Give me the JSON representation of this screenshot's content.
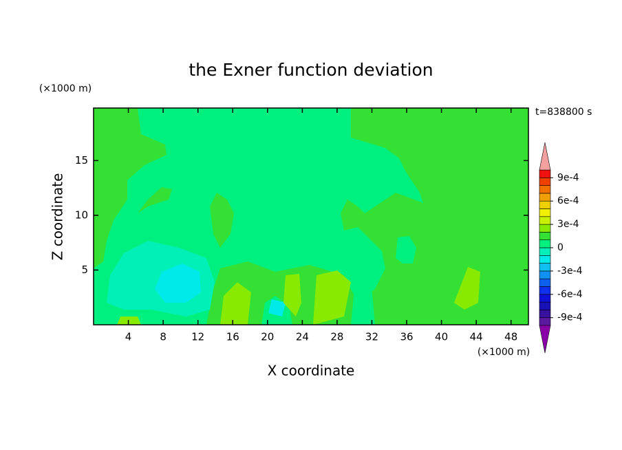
{
  "chart_data": {
    "type": "contour",
    "title": "the Exner function deviation",
    "xlabel": "X coordinate",
    "ylabel": "Z coordinate",
    "x_unit": "(×1000 m)",
    "y_unit": "(×1000 m)",
    "time_label": "t=838800 s",
    "xlim": [
      0,
      50
    ],
    "ylim": [
      0,
      19.8
    ],
    "xticks": [
      4,
      8,
      12,
      16,
      20,
      24,
      28,
      32,
      36,
      40,
      44,
      48
    ],
    "yticks": [
      5,
      10,
      15
    ],
    "colorbar": {
      "levels": [
        -0.001,
        -0.0009,
        -0.0008,
        -0.0007,
        -0.0006,
        -0.0005,
        -0.0004,
        -0.0003,
        -0.0002,
        -0.0001,
        0,
        0.0001,
        0.0002,
        0.0003,
        0.0004,
        0.0005,
        0.0006,
        0.0007,
        0.0008,
        0.0009,
        0.001
      ],
      "colors": [
        "#8a00a8",
        "#5a1aa0",
        "#3a10a0",
        "#1a10b8",
        "#1010d8",
        "#1030f0",
        "#1060f0",
        "#1090f0",
        "#10c0f0",
        "#00eaea",
        "#00f0b8",
        "#00f080",
        "#33e033",
        "#88ea00",
        "#c8f000",
        "#f0f000",
        "#f0d000",
        "#f0a000",
        "#f07000",
        "#f04000",
        "#f01010",
        "#f4a0a0"
      ],
      "ticks": [
        {
          "value": -0.0009,
          "label": "-9e-4"
        },
        {
          "value": -0.0006,
          "label": "-6e-4"
        },
        {
          "value": -0.0003,
          "label": "-3e-4"
        },
        0,
        {
          "value": 0.0003,
          "label": "3e-4"
        },
        {
          "value": 0.0006,
          "label": "6e-4"
        },
        {
          "value": 0.0009,
          "label": "9e-4"
        }
      ]
    }
  }
}
